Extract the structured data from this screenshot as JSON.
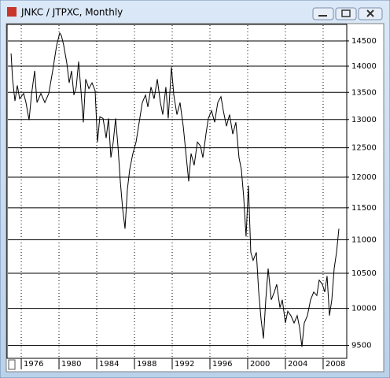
{
  "chart_data": {
    "type": "line",
    "title": "JNKC / JTPXC, Monthly",
    "x": [
      1974.92,
      1975.08,
      1975.33,
      1975.58,
      1975.83,
      1976.25,
      1976.5,
      1976.83,
      1977.08,
      1977.42,
      1977.67,
      1978.08,
      1978.5,
      1978.92,
      1979.33,
      1979.75,
      1980.08,
      1980.25,
      1980.5,
      1980.83,
      1981.08,
      1981.33,
      1981.58,
      1981.83,
      1982.08,
      1982.33,
      1982.58,
      1982.83,
      1983.17,
      1983.5,
      1983.83,
      1984.08,
      1984.33,
      1984.67,
      1985,
      1985.25,
      1985.5,
      1985.75,
      1986,
      1986.25,
      1986.5,
      1986.75,
      1987,
      1987.25,
      1987.5,
      1987.83,
      1988.17,
      1988.5,
      1988.83,
      1989.17,
      1989.42,
      1989.75,
      1990.08,
      1990.42,
      1990.75,
      1991,
      1991.33,
      1991.58,
      1991.92,
      1992.17,
      1992.5,
      1992.83,
      1993.17,
      1993.5,
      1993.75,
      1994,
      1994.33,
      1994.67,
      1995,
      1995.25,
      1995.58,
      1995.83,
      1996.17,
      1996.5,
      1996.83,
      1997.17,
      1997.42,
      1997.75,
      1998.08,
      1998.42,
      1998.75,
      1999.08,
      1999.33,
      1999.58,
      1999.83,
      2000.08,
      2000.33,
      2000.58,
      2000.92,
      2001.17,
      2001.42,
      2001.67,
      2001.92,
      2002.17,
      2002.5,
      2002.83,
      2003.08,
      2003.42,
      2003.67,
      2004,
      2004.25,
      2004.58,
      2004.92,
      2005.25,
      2005.5,
      2005.75,
      2006,
      2006.33,
      2006.67,
      2007,
      2007.33,
      2007.58,
      2007.92,
      2008.17,
      2008.42,
      2008.67,
      2008.92,
      2009.17,
      2009.42,
      2009.67
    ],
    "values": [
      14250,
      13750,
      13340,
      13630,
      13380,
      13480,
      13310,
      12990,
      13450,
      13910,
      13310,
      13480,
      13310,
      13480,
      13910,
      14410,
      14660,
      14610,
      14410,
      14060,
      13680,
      13910,
      13450,
      13600,
      14090,
      13530,
      12950,
      13750,
      13570,
      13680,
      13530,
      12600,
      13050,
      13020,
      12670,
      13020,
      12330,
      12600,
      13020,
      12530,
      11930,
      11480,
      11170,
      11800,
      12130,
      12400,
      12600,
      12950,
      13310,
      13450,
      13230,
      13600,
      13380,
      13750,
      13310,
      13090,
      13600,
      13020,
      13980,
      13450,
      13090,
      13310,
      12880,
      12330,
      11930,
      12400,
      12200,
      12600,
      12530,
      12330,
      12740,
      13020,
      13160,
      12950,
      13310,
      13420,
      13160,
      12880,
      13090,
      12740,
      12950,
      12330,
      12130,
      11670,
      11050,
      11860,
      10810,
      10690,
      10810,
      10230,
      9850,
      9590,
      10120,
      10570,
      10120,
      10230,
      10340,
      10010,
      10120,
      9800,
      9960,
      9900,
      9800,
      9900,
      9740,
      9480,
      9800,
      9900,
      10120,
      10230,
      10180,
      10400,
      10340,
      10230,
      10460,
      9900,
      10120,
      10570,
      10810,
      11170
    ],
    "color": "#000000",
    "xlim": [
      1974.58,
      2010.42
    ],
    "xticks": [
      1976,
      1980,
      1984,
      1988,
      1992,
      1996,
      2000,
      2004,
      2008
    ],
    "ylim": [
      9330,
      14820
    ],
    "yticks": [
      9500,
      10000,
      10500,
      11000,
      11500,
      12000,
      12500,
      13000,
      13500,
      14000,
      14500
    ],
    "log_y": true,
    "grid": true
  }
}
